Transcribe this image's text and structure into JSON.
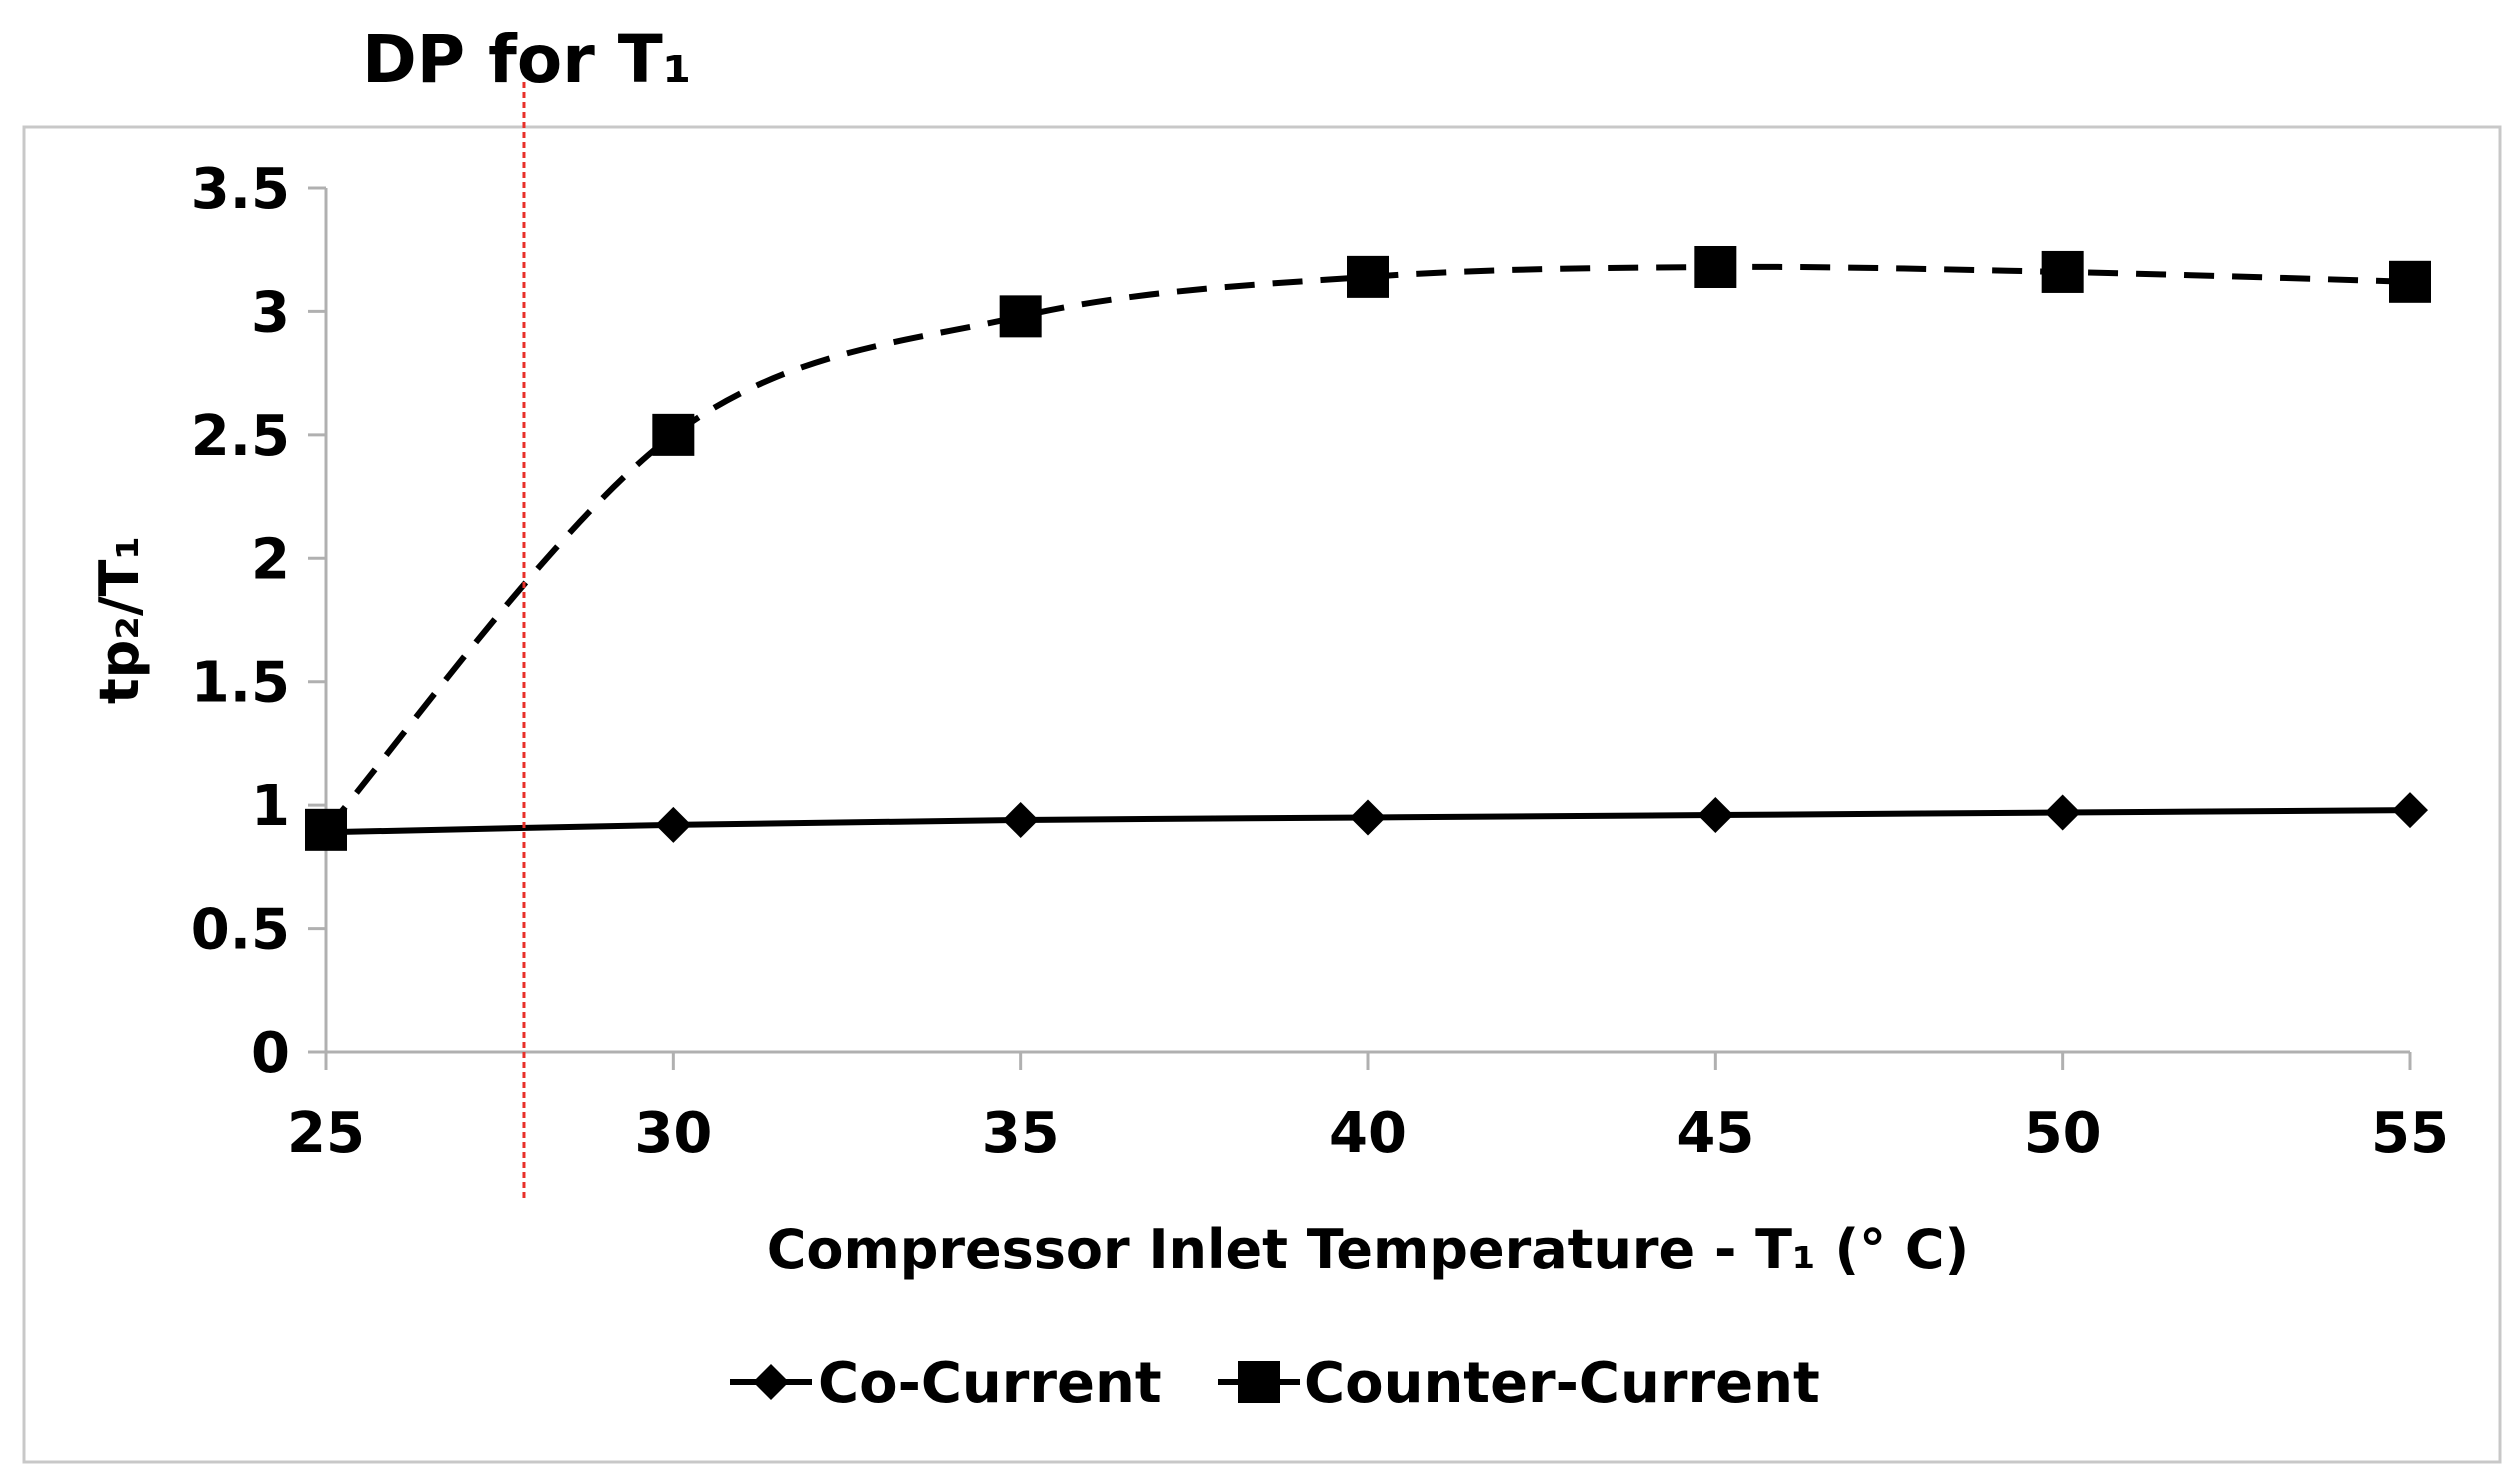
{
  "chart_data": {
    "type": "line",
    "title": "",
    "xlabel": "Compressor Inlet Temperature - T₁ (° C)",
    "ylabel": "tp₂/T₁",
    "x": [
      25,
      30,
      35,
      40,
      45,
      50,
      55
    ],
    "x_ticks": [
      "25",
      "30",
      "35",
      "40",
      "45",
      "50",
      "55"
    ],
    "xlim": [
      25,
      55
    ],
    "ylim": [
      0,
      3.5
    ],
    "y_ticks": [
      "0",
      "0.5",
      "1",
      "1.5",
      "2",
      "2.5",
      "3",
      "3.5"
    ],
    "grid": false,
    "legend_position": "bottom",
    "series": [
      {
        "name": "Co-Current",
        "marker": "diamond",
        "line_style": "solid",
        "color": "#000000",
        "values": [
          0.89,
          0.92,
          0.94,
          0.95,
          0.96,
          0.97,
          0.98
        ]
      },
      {
        "name": "Counter-Current",
        "marker": "square",
        "line_style": "dashed",
        "color": "#000000",
        "values": [
          0.9,
          2.5,
          2.98,
          3.14,
          3.18,
          3.16,
          3.12
        ]
      }
    ],
    "annotations": [
      {
        "text": "DP for T₁",
        "type": "vertical-line",
        "x": 27.85,
        "color": "#e8302a"
      }
    ]
  }
}
